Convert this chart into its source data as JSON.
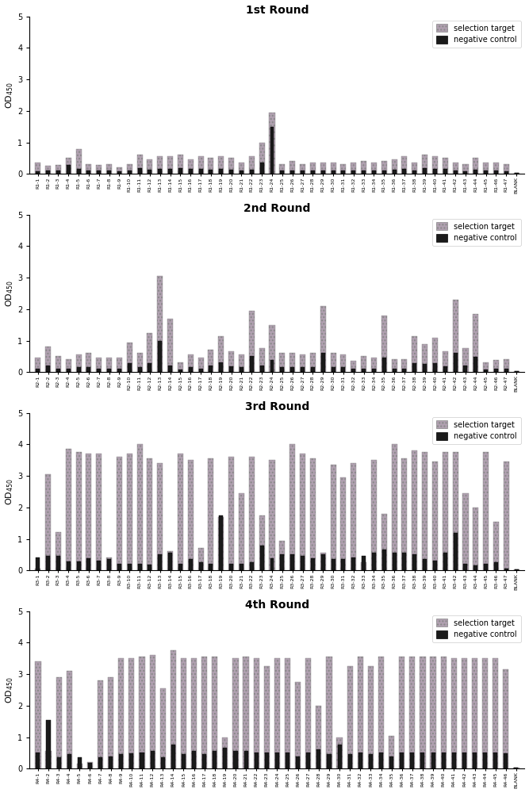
{
  "rounds": [
    "1st Round",
    "2nd Round",
    "3rd Round",
    "4th Round"
  ],
  "labels": [
    "R1-1",
    "R1-2",
    "R1-3",
    "R1-4",
    "R1-5",
    "R1-6",
    "R1-7",
    "R1-8",
    "R1-9",
    "R1-10",
    "R1-11",
    "R1-12",
    "R1-13",
    "R1-14",
    "R1-15",
    "R1-16",
    "R1-17",
    "R1-18",
    "R1-19",
    "R1-20",
    "R1-21",
    "R1-22",
    "R1-23",
    "R1-24",
    "R1-25",
    "R1-26",
    "R1-27",
    "R1-28",
    "R1-29",
    "R1-30",
    "R1-31",
    "R1-32",
    "R1-33",
    "R1-34",
    "R1-35",
    "R1-36",
    "R1-37",
    "R1-38",
    "R1-39",
    "R1-40",
    "R1-41",
    "R1-42",
    "R1-43",
    "R1-44",
    "R1-45",
    "R1-46",
    "R1-47",
    "BLANK"
  ],
  "labels2": [
    "R2-1",
    "R2-2",
    "R2-3",
    "R2-4",
    "R2-5",
    "R2-6",
    "R2-7",
    "R2-8",
    "R2-9",
    "R2-10",
    "R2-11",
    "R2-12",
    "R2-13",
    "R2-14",
    "R2-15",
    "R2-16",
    "R2-17",
    "R2-18",
    "R2-19",
    "R2-20",
    "R2-21",
    "R2-22",
    "R2-23",
    "R2-24",
    "R2-25",
    "R2-26",
    "R2-27",
    "R2-28",
    "R2-29",
    "R2-30",
    "R2-31",
    "R2-32",
    "R2-33",
    "R2-34",
    "R2-35",
    "R2-36",
    "R2-37",
    "R2-38",
    "R2-39",
    "R2-40",
    "R2-41",
    "R2-42",
    "R2-43",
    "R2-44",
    "R2-45",
    "R2-46",
    "R2-47",
    "BLANK"
  ],
  "labels3": [
    "R3-1",
    "R3-2",
    "R3-3",
    "R3-4",
    "R3-5",
    "R3-6",
    "R3-7",
    "R3-8",
    "R3-9",
    "R3-10",
    "R3-11",
    "R3-12",
    "R3-13",
    "R3-14",
    "R3-15",
    "R3-16",
    "R3-17",
    "R3-18",
    "R3-19",
    "R3-20",
    "R3-21",
    "R3-22",
    "R3-23",
    "R3-24",
    "R3-25",
    "R3-26",
    "R3-27",
    "R3-28",
    "R3-29",
    "R3-30",
    "R3-31",
    "R3-32",
    "R3-33",
    "R3-34",
    "R3-35",
    "R3-36",
    "R3-37",
    "R3-38",
    "R3-39",
    "R3-40",
    "R3-41",
    "R3-42",
    "R3-43",
    "R3-44",
    "R3-45",
    "R3-46",
    "R3-47",
    "BLANK"
  ],
  "labels4": [
    "R4-1",
    "R4-2",
    "R4-3",
    "R4-4",
    "R4-5",
    "R4-6",
    "R4-7",
    "R4-8",
    "R4-9",
    "R4-10",
    "R4-11",
    "R4-12",
    "R4-13",
    "R4-14",
    "R4-15",
    "R4-16",
    "R4-17",
    "R4-18",
    "R4-19",
    "R4-20",
    "R4-21",
    "R4-22",
    "R4-23",
    "R4-24",
    "R4-25",
    "R4-26",
    "R4-27",
    "R4-28",
    "R4-29",
    "R4-30",
    "R4-31",
    "R4-32",
    "R4-33",
    "R4-34",
    "R4-35",
    "R4-36",
    "R4-37",
    "R4-38",
    "R4-39",
    "R4-40",
    "R4-41",
    "R4-42",
    "R4-43",
    "R4-44",
    "R4-45",
    "R4-46",
    "BLANK"
  ],
  "selection_target": {
    "round1": [
      0.35,
      0.25,
      0.28,
      0.52,
      0.78,
      0.3,
      0.28,
      0.3,
      0.22,
      0.3,
      0.6,
      0.45,
      0.55,
      0.55,
      0.6,
      0.45,
      0.55,
      0.5,
      0.55,
      0.5,
      0.35,
      0.55,
      1.0,
      1.95,
      0.3,
      0.4,
      0.3,
      0.35,
      0.35,
      0.35,
      0.3,
      0.35,
      0.4,
      0.35,
      0.4,
      0.45,
      0.55,
      0.35,
      0.6,
      0.55,
      0.5,
      0.35,
      0.3,
      0.5,
      0.35,
      0.35,
      0.3,
      0.02
    ],
    "round2": [
      0.45,
      0.82,
      0.5,
      0.4,
      0.55,
      0.6,
      0.45,
      0.45,
      0.45,
      0.95,
      0.6,
      1.25,
      3.05,
      1.7,
      0.3,
      0.55,
      0.45,
      0.7,
      1.15,
      0.65,
      0.55,
      1.95,
      0.75,
      1.5,
      0.6,
      0.6,
      0.55,
      0.6,
      2.1,
      0.6,
      0.55,
      0.35,
      0.5,
      0.45,
      1.8,
      0.4,
      0.4,
      1.15,
      0.9,
      1.1,
      0.65,
      2.3,
      0.75,
      1.85,
      0.3,
      0.38,
      0.4,
      0.02
    ],
    "round3": [
      0.05,
      3.05,
      1.22,
      3.85,
      3.75,
      3.7,
      3.7,
      0.4,
      3.6,
      3.72,
      4.0,
      3.55,
      3.4,
      0.6,
      3.7,
      3.5,
      0.7,
      3.55,
      1.7,
      3.6,
      2.45,
      3.6,
      1.75,
      3.5,
      0.95,
      4.0,
      3.7,
      3.55,
      0.55,
      3.35,
      2.95,
      3.4,
      0.25,
      3.5,
      1.8,
      4.0,
      3.55,
      3.8,
      3.75,
      3.45,
      3.75,
      3.75,
      2.45,
      2.0,
      3.75,
      1.55,
      3.45,
      0.02
    ],
    "round4": [
      3.4,
      0.55,
      2.9,
      3.1,
      0.15,
      0.2,
      2.8,
      2.9,
      3.5,
      3.5,
      3.55,
      3.6,
      2.55,
      3.75,
      3.5,
      3.5,
      3.55,
      3.55,
      1.0,
      3.5,
      3.55,
      3.5,
      3.25,
      3.5,
      3.5,
      2.75,
      3.5,
      2.0,
      3.55,
      1.0,
      3.25,
      3.55,
      3.25,
      3.55,
      1.05,
      3.55,
      3.55,
      3.55,
      3.55,
      3.55,
      3.5,
      3.5,
      3.5,
      3.5,
      3.5,
      3.15,
      0.02
    ]
  },
  "negative_control": {
    "round1": [
      0.08,
      0.12,
      0.1,
      0.28,
      0.15,
      0.12,
      0.1,
      0.12,
      0.08,
      0.1,
      0.18,
      0.14,
      0.16,
      0.16,
      0.18,
      0.15,
      0.16,
      0.14,
      0.16,
      0.14,
      0.1,
      0.14,
      0.35,
      1.5,
      0.1,
      0.12,
      0.1,
      0.1,
      0.1,
      0.1,
      0.1,
      0.1,
      0.12,
      0.1,
      0.12,
      0.14,
      0.16,
      0.1,
      0.18,
      0.16,
      0.15,
      0.1,
      0.08,
      0.14,
      0.1,
      0.1,
      0.08,
      0.02
    ],
    "round2": [
      0.12,
      0.22,
      0.12,
      0.1,
      0.15,
      0.16,
      0.12,
      0.12,
      0.12,
      0.28,
      0.16,
      0.28,
      1.0,
      0.22,
      0.08,
      0.15,
      0.12,
      0.2,
      0.3,
      0.18,
      0.15,
      0.5,
      0.2,
      0.38,
      0.16,
      0.16,
      0.15,
      0.16,
      0.6,
      0.16,
      0.15,
      0.1,
      0.12,
      0.12,
      0.45,
      0.1,
      0.1,
      0.28,
      0.25,
      0.28,
      0.18,
      0.62,
      0.2,
      0.48,
      0.08,
      0.1,
      0.1,
      0.02
    ],
    "round3": [
      0.4,
      0.45,
      0.45,
      0.28,
      0.28,
      0.38,
      0.3,
      0.35,
      0.2,
      0.22,
      0.22,
      0.18,
      0.5,
      0.55,
      0.22,
      0.35,
      0.25,
      0.2,
      1.75,
      0.22,
      0.2,
      0.25,
      0.8,
      0.38,
      0.5,
      0.5,
      0.45,
      0.38,
      0.5,
      0.35,
      0.35,
      0.4,
      0.45,
      0.55,
      0.65,
      0.55,
      0.55,
      0.5,
      0.35,
      0.3,
      0.55,
      1.2,
      0.22,
      0.15,
      0.22,
      0.25,
      0.05,
      0.02
    ],
    "round4": [
      0.5,
      1.55,
      0.35,
      0.45,
      0.35,
      0.18,
      0.35,
      0.38,
      0.45,
      0.48,
      0.5,
      0.55,
      0.35,
      0.75,
      0.45,
      0.55,
      0.45,
      0.55,
      0.65,
      0.55,
      0.55,
      0.5,
      0.5,
      0.5,
      0.5,
      0.38,
      0.5,
      0.6,
      0.45,
      0.75,
      0.45,
      0.5,
      0.45,
      0.5,
      0.38,
      0.5,
      0.5,
      0.5,
      0.5,
      0.5,
      0.5,
      0.5,
      0.5,
      0.5,
      0.5,
      0.48,
      0.02
    ]
  },
  "selection_color": "#b0a0b0",
  "negative_color": "#1a1a1a",
  "background_color": "#ffffff",
  "ylabel": "OD$_{450}$",
  "ylim": [
    0,
    5
  ],
  "yticks": [
    0,
    1,
    2,
    3,
    4,
    5
  ]
}
